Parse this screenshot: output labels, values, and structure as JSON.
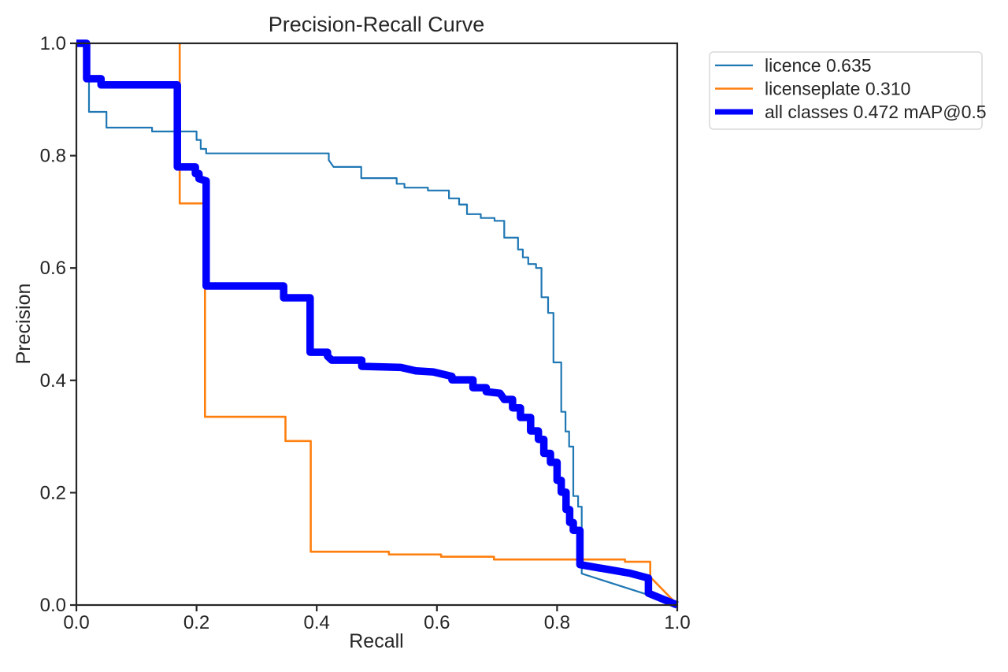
{
  "window": {
    "background": "#ffffff"
  },
  "chart_data": {
    "type": "line",
    "title": "Precision-Recall Curve",
    "xlabel": "Recall",
    "ylabel": "Precision",
    "xlim": [
      0.0,
      1.0
    ],
    "ylim": [
      0.0,
      1.0
    ],
    "grid": false,
    "legend_position": "outside-upper-right",
    "xticks": [
      0.0,
      0.2,
      0.4,
      0.6,
      0.8,
      1.0
    ],
    "xtick_labels": [
      "0.0",
      "0.2",
      "0.4",
      "0.6",
      "0.8",
      "1.0"
    ],
    "yticks": [
      0.0,
      0.2,
      0.4,
      0.6,
      0.8,
      1.0
    ],
    "ytick_labels": [
      "0.0",
      "0.2",
      "0.4",
      "0.6",
      "0.8",
      "1.0"
    ],
    "axis_color": "#262626",
    "series": [
      {
        "name": "licence 0.635",
        "color": "#1f77b4",
        "line_width": 2.2,
        "legend_line_width": 2.2,
        "points": [
          [
            0,
            1
          ],
          [
            0.021,
            1
          ],
          [
            0.021,
            0.878
          ],
          [
            0.05,
            0.878
          ],
          [
            0.05,
            0.85
          ],
          [
            0.126,
            0.85
          ],
          [
            0.126,
            0.843
          ],
          [
            0.2,
            0.843
          ],
          [
            0.2,
            0.828
          ],
          [
            0.207,
            0.828
          ],
          [
            0.207,
            0.812
          ],
          [
            0.216,
            0.812
          ],
          [
            0.216,
            0.804
          ],
          [
            0.42,
            0.804
          ],
          [
            0.42,
            0.792
          ],
          [
            0.428,
            0.78
          ],
          [
            0.474,
            0.78
          ],
          [
            0.474,
            0.76
          ],
          [
            0.533,
            0.76
          ],
          [
            0.533,
            0.75
          ],
          [
            0.546,
            0.75
          ],
          [
            0.546,
            0.743
          ],
          [
            0.585,
            0.743
          ],
          [
            0.585,
            0.738
          ],
          [
            0.62,
            0.738
          ],
          [
            0.62,
            0.724
          ],
          [
            0.637,
            0.724
          ],
          [
            0.637,
            0.713
          ],
          [
            0.65,
            0.713
          ],
          [
            0.65,
            0.696
          ],
          [
            0.673,
            0.696
          ],
          [
            0.673,
            0.689
          ],
          [
            0.696,
            0.689
          ],
          [
            0.696,
            0.684
          ],
          [
            0.712,
            0.684
          ],
          [
            0.712,
            0.654
          ],
          [
            0.735,
            0.654
          ],
          [
            0.735,
            0.633
          ],
          [
            0.743,
            0.633
          ],
          [
            0.743,
            0.619
          ],
          [
            0.752,
            0.619
          ],
          [
            0.752,
            0.607
          ],
          [
            0.765,
            0.607
          ],
          [
            0.765,
            0.6
          ],
          [
            0.774,
            0.6
          ],
          [
            0.774,
            0.548
          ],
          [
            0.785,
            0.548
          ],
          [
            0.785,
            0.52
          ],
          [
            0.794,
            0.52
          ],
          [
            0.794,
            0.432
          ],
          [
            0.807,
            0.432
          ],
          [
            0.807,
            0.344
          ],
          [
            0.814,
            0.344
          ],
          [
            0.814,
            0.309
          ],
          [
            0.82,
            0.309
          ],
          [
            0.82,
            0.282
          ],
          [
            0.827,
            0.282
          ],
          [
            0.827,
            0.194
          ],
          [
            0.835,
            0.194
          ],
          [
            0.835,
            0.175
          ],
          [
            0.841,
            0.175
          ],
          [
            0.841,
            0.056
          ],
          [
            0.999,
            0.002
          ]
        ]
      },
      {
        "name": "licenseplate 0.310",
        "color": "#ff7f0e",
        "line_width": 2.6,
        "legend_line_width": 2.6,
        "points": [
          [
            0.172,
            1.0
          ],
          [
            0.172,
            0.715
          ],
          [
            0.214,
            0.715
          ],
          [
            0.214,
            0.335
          ],
          [
            0.348,
            0.335
          ],
          [
            0.348,
            0.292
          ],
          [
            0.39,
            0.292
          ],
          [
            0.39,
            0.095
          ],
          [
            0.52,
            0.095
          ],
          [
            0.52,
            0.09
          ],
          [
            0.607,
            0.09
          ],
          [
            0.607,
            0.086
          ],
          [
            0.695,
            0.086
          ],
          [
            0.695,
            0.081
          ],
          [
            0.913,
            0.081
          ],
          [
            0.913,
            0.077
          ],
          [
            0.955,
            0.077
          ],
          [
            0.955,
            0.05
          ],
          [
            0.998,
            0.003
          ]
        ]
      },
      {
        "name": "all classes 0.472 mAP@0.5",
        "color": "#0000ff",
        "line_width": 9.5,
        "legend_line_width": 7,
        "points": [
          [
            0,
            1
          ],
          [
            0.017,
            1
          ],
          [
            0.017,
            0.937
          ],
          [
            0.041,
            0.937
          ],
          [
            0.041,
            0.926
          ],
          [
            0.168,
            0.926
          ],
          [
            0.168,
            0.78
          ],
          [
            0.198,
            0.78
          ],
          [
            0.198,
            0.768
          ],
          [
            0.204,
            0.768
          ],
          [
            0.204,
            0.759
          ],
          [
            0.216,
            0.755
          ],
          [
            0.216,
            0.568
          ],
          [
            0.345,
            0.568
          ],
          [
            0.345,
            0.547
          ],
          [
            0.389,
            0.547
          ],
          [
            0.389,
            0.45
          ],
          [
            0.418,
            0.45
          ],
          [
            0.418,
            0.443
          ],
          [
            0.425,
            0.436
          ],
          [
            0.475,
            0.436
          ],
          [
            0.475,
            0.425
          ],
          [
            0.54,
            0.423
          ],
          [
            0.565,
            0.417
          ],
          [
            0.594,
            0.415
          ],
          [
            0.625,
            0.407
          ],
          [
            0.625,
            0.401
          ],
          [
            0.66,
            0.401
          ],
          [
            0.66,
            0.387
          ],
          [
            0.682,
            0.387
          ],
          [
            0.682,
            0.38
          ],
          [
            0.705,
            0.377
          ],
          [
            0.712,
            0.366
          ],
          [
            0.726,
            0.366
          ],
          [
            0.726,
            0.351
          ],
          [
            0.739,
            0.351
          ],
          [
            0.739,
            0.334
          ],
          [
            0.756,
            0.334
          ],
          [
            0.756,
            0.31
          ],
          [
            0.769,
            0.31
          ],
          [
            0.769,
            0.295
          ],
          [
            0.778,
            0.295
          ],
          [
            0.778,
            0.27
          ],
          [
            0.789,
            0.27
          ],
          [
            0.789,
            0.254
          ],
          [
            0.8,
            0.254
          ],
          [
            0.8,
            0.222
          ],
          [
            0.807,
            0.222
          ],
          [
            0.807,
            0.201
          ],
          [
            0.815,
            0.201
          ],
          [
            0.815,
            0.17
          ],
          [
            0.821,
            0.17
          ],
          [
            0.821,
            0.147
          ],
          [
            0.827,
            0.147
          ],
          [
            0.827,
            0.133
          ],
          [
            0.838,
            0.133
          ],
          [
            0.838,
            0.072
          ],
          [
            0.87,
            0.066
          ],
          [
            0.92,
            0.057
          ],
          [
            0.952,
            0.048
          ],
          [
            0.952,
            0.021
          ],
          [
            1.0,
            0.0
          ]
        ]
      }
    ]
  },
  "legend": {
    "border_color": "#d9d9d9",
    "background": "#ffffff",
    "entries": [
      {
        "label": "licence 0.635"
      },
      {
        "label": "licenseplate 0.310"
      },
      {
        "label": "all classes 0.472 mAP@0.5"
      }
    ]
  }
}
